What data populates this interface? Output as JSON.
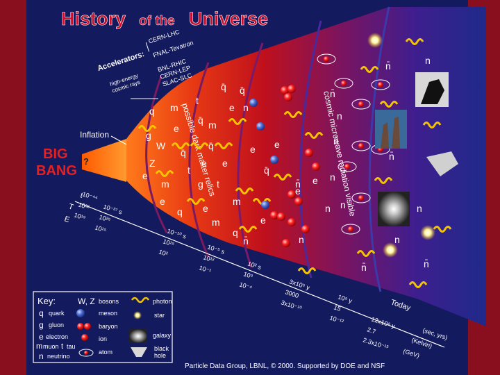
{
  "title": {
    "part1": "History",
    "part2": "of the",
    "part3": "Universe"
  },
  "big_bang": {
    "line1": "BIG",
    "line2": "BANG"
  },
  "inflation_label": "Inflation",
  "accelerators": {
    "heading": "Accelerators:",
    "lhc": "CERN-LHC",
    "tevatron": "FNAL-Tevatron",
    "rhic": "BNL-RHIC",
    "lep": "CERN-LEP",
    "slc": "SLAC-SLC",
    "cosmic_rays_line1": "high-energy",
    "cosmic_rays_line2": "cosmic rays"
  },
  "bands": {
    "dark_matter": "possible dark matter relics",
    "cmb": "cosmic microwave radiation visible"
  },
  "timeline": {
    "row_labels": [
      "t",
      "T",
      "E"
    ],
    "columns": [
      {
        "t": "10⁻⁴⁴",
        "T": "10³²",
        "E": "10¹⁹"
      },
      {
        "t": "10⁻³⁷ s",
        "T": "10²⁵",
        "E": "10¹⁵"
      },
      {
        "t": "10⁻¹⁰ s",
        "T": "10¹⁵",
        "E": "10²"
      },
      {
        "t": "10⁻⁵ s",
        "T": "10¹²",
        "E": "10⁻¹"
      },
      {
        "t": "10² s",
        "T": "10⁹",
        "E": "10⁻⁴"
      },
      {
        "t": "3x10⁵ y",
        "T": "3000",
        "E": "3x10⁻¹⁰"
      },
      {
        "t": "10⁹ y",
        "T": "15",
        "E": "10⁻¹²"
      },
      {
        "t": "12x10⁹ y",
        "T": "2.7",
        "E": "2.3x10⁻¹³"
      }
    ],
    "today": "Today",
    "units": {
      "time": "(sec, yrs)",
      "temp": "(Kelvin)",
      "energy": "(GeV)"
    }
  },
  "symbols": {
    "quark": "q",
    "quark_bar": "q̄",
    "gluon": "g",
    "electron": "e",
    "muon": "m",
    "tau": "t",
    "neutrino": "n",
    "neutrino_bar": "n̄",
    "W": "W",
    "Z": "Z",
    "question": "?"
  },
  "key": {
    "title": "Key:",
    "wz": "W, Z",
    "items": {
      "bosons": "bosons",
      "photon": "photon",
      "quark": "quark",
      "meson": "meson",
      "star": "star",
      "gluon": "gluon",
      "baryon": "baryon",
      "electron": "electron",
      "ion": "ion",
      "galaxy": "galaxy",
      "muon": "muon",
      "tau": "tau",
      "atom": "atom",
      "black_hole_line1": "black",
      "black_hole_line2": "hole",
      "neutrino": "neutrino"
    }
  },
  "credit": "Particle Data Group, LBNL, © 2000.   Supported by DOE and NSF",
  "colors": {
    "background": "#8a0f1e",
    "panel": "#141a5e",
    "title_red": "#c8102e",
    "big_bang_red": "#e52020",
    "photon_yellow": "#f5c400",
    "cone_hot": "#ff6a1a",
    "cone_mid": "#c0101c",
    "cone_cool": "#5a1a8a"
  }
}
